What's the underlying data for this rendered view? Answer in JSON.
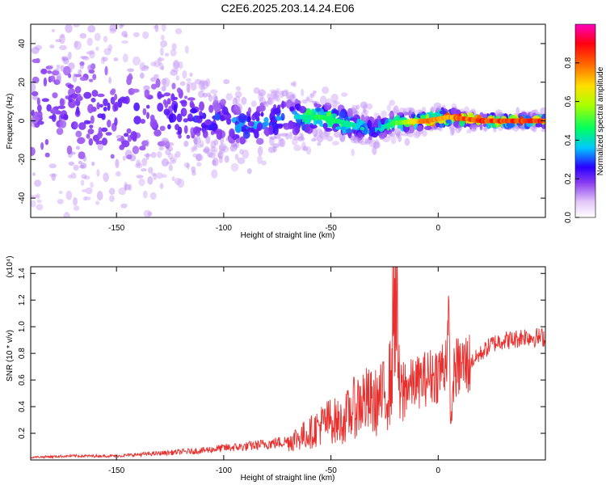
{
  "title": "C2E6.2025.203.14.24.E06",
  "chart_data": [
    {
      "type": "heatmap",
      "xlabel": "Height of straight line (km)",
      "ylabel": "Frequency (Hz)",
      "xlim": [
        -190,
        50
      ],
      "ylim": [
        -50,
        50
      ],
      "xticks": [
        -150,
        -100,
        -50,
        0
      ],
      "yticks": [
        -40,
        -20,
        0,
        20,
        40
      ],
      "colorbar": {
        "label": "Normalized spectral amplitude",
        "range": [
          0,
          1
        ],
        "ticks": [
          "0.0",
          "0.2",
          "0.4",
          "0.6",
          "0.8"
        ],
        "tick_values": [
          0.0,
          0.2,
          0.4,
          0.6,
          0.8
        ]
      },
      "colors": {
        "low": "#e4c8f8",
        "mid_low": "#6a1fe6",
        "mid": "#1ecfd8",
        "mid_high": "#35e03a",
        "high": "#e8202a"
      },
      "ridge": [
        {
          "x": -190,
          "freq": 5,
          "spread": 45,
          "amp": 0.15
        },
        {
          "x": -140,
          "freq": 3,
          "spread": 25,
          "amp": 0.2
        },
        {
          "x": -110,
          "freq": 2,
          "spread": 12,
          "amp": 0.25
        },
        {
          "x": -90,
          "freq": -3,
          "spread": 10,
          "amp": 0.3
        },
        {
          "x": -70,
          "freq": 2,
          "spread": 8,
          "amp": 0.35
        },
        {
          "x": -55,
          "freq": 2,
          "spread": 6,
          "amp": 0.55
        },
        {
          "x": -40,
          "freq": -2,
          "spread": 6,
          "amp": 0.45
        },
        {
          "x": -30,
          "freq": -5,
          "spread": 5,
          "amp": 0.3
        },
        {
          "x": -20,
          "freq": -1,
          "spread": 4,
          "amp": 0.55
        },
        {
          "x": -5,
          "freq": 0,
          "spread": 3,
          "amp": 0.9
        },
        {
          "x": 5,
          "freq": 2,
          "spread": 3,
          "amp": 0.85
        },
        {
          "x": 20,
          "freq": 0,
          "spread": 2,
          "amp": 0.95
        },
        {
          "x": 50,
          "freq": 0,
          "spread": 2,
          "amp": 0.95
        }
      ]
    },
    {
      "type": "line",
      "xlabel": "Height of straight line (km)",
      "ylabel": "SNR (10 * v/v)",
      "scale_note": "(x10⁴)",
      "xlim": [
        -190,
        50
      ],
      "ylim": [
        0,
        1.45
      ],
      "xticks": [
        -150,
        -100,
        -50,
        0
      ],
      "yticks": [
        0.2,
        0.4,
        0.6,
        0.8,
        1.0,
        1.2,
        1.4
      ],
      "series": [
        {
          "color": "#e8302e",
          "x": [
            -190,
            -170,
            -150,
            -130,
            -110,
            -100,
            -90,
            -80,
            -70,
            -60,
            -55,
            -50,
            -45,
            -40,
            -35,
            -30,
            -25,
            -22,
            -20,
            -18,
            -15,
            -10,
            -5,
            0,
            3,
            5,
            6,
            7,
            8,
            10,
            15,
            20,
            25,
            30,
            35,
            40,
            45,
            50
          ],
          "y": [
            0.02,
            0.03,
            0.03,
            0.05,
            0.07,
            0.09,
            0.1,
            0.12,
            0.14,
            0.2,
            0.26,
            0.3,
            0.28,
            0.38,
            0.45,
            0.42,
            0.48,
            0.6,
            1.45,
            0.45,
            0.55,
            0.58,
            0.62,
            0.65,
            0.72,
            0.95,
            0.22,
            0.6,
            0.68,
            0.7,
            0.73,
            0.8,
            0.87,
            0.9,
            0.9,
            0.93,
            0.92,
            0.92
          ]
        }
      ]
    }
  ]
}
